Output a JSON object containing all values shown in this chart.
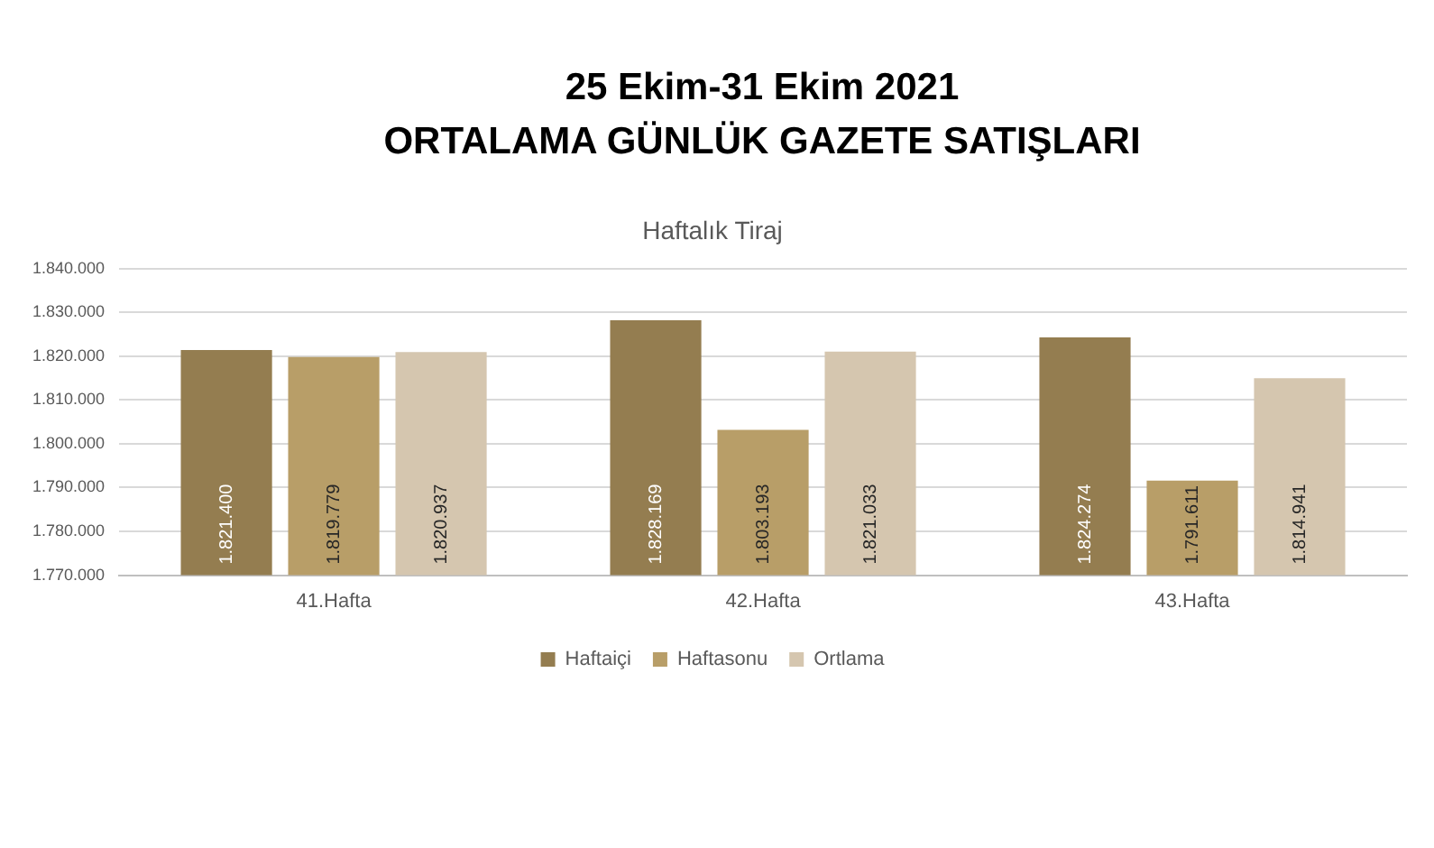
{
  "chart_data": {
    "type": "bar",
    "title": "25 Ekim-31 Ekim 2021\nORTALAMA GÜNLÜK GAZETE SATIŞLARI",
    "subtitle": "Haftalık Tiraj",
    "categories": [
      "41.Hafta",
      "42.Hafta",
      "43.Hafta"
    ],
    "series": [
      {
        "name": "Haftaiçi",
        "color": "#947d50",
        "values": [
          1821400,
          1828169,
          1824274
        ],
        "value_labels": [
          "1.821.400",
          "1.828.169",
          "1.824.274"
        ]
      },
      {
        "name": "Haftasonu",
        "color": "#b89e68",
        "values": [
          1819779,
          1803193,
          1791611
        ],
        "value_labels": [
          "1.819.779",
          "1.803.193",
          "1.791.611"
        ]
      },
      {
        "name": "Ortlama",
        "color": "#d5c6af",
        "values": [
          1820937,
          1821033,
          1814941
        ],
        "value_labels": [
          "1.820.937",
          "1.821.033",
          "1.814.941"
        ]
      }
    ],
    "ylim": [
      1770000,
      1840000
    ],
    "yticks": [
      {
        "value": 1770000,
        "label": "1.770.000"
      },
      {
        "value": 1780000,
        "label": "1.780.000"
      },
      {
        "value": 1790000,
        "label": "1.790.000"
      },
      {
        "value": 1800000,
        "label": "1.800.000"
      },
      {
        "value": 1810000,
        "label": "1.810.000"
      },
      {
        "value": 1820000,
        "label": "1.820.000"
      },
      {
        "value": 1830000,
        "label": "1.830.000"
      },
      {
        "value": 1840000,
        "label": "1.840.000"
      }
    ],
    "grid": "y",
    "legend": "bottom"
  }
}
